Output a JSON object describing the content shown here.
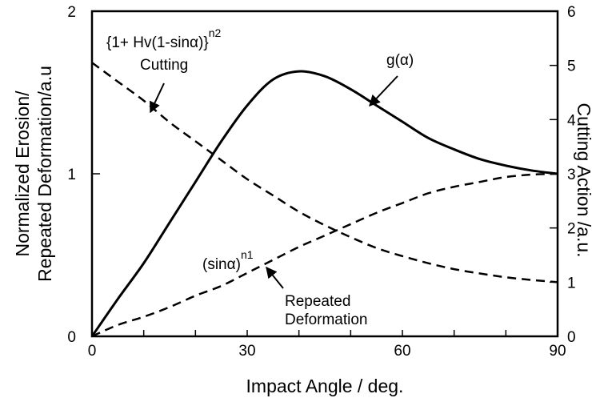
{
  "chart_data": {
    "type": "line",
    "xlabel": "Impact Angle / deg.",
    "ylabel_left_line1": "Normalized Erosion/",
    "ylabel_left_line2": "Repeated Deformation/a.u",
    "ylabel_right": "Cutting Action /a.u.",
    "xlim": [
      0,
      90
    ],
    "ylim_left": [
      0,
      2
    ],
    "ylim_right": [
      0,
      6
    ],
    "x_ticks": [
      "0",
      "30",
      "60",
      "90"
    ],
    "y_left_ticks": [
      "0",
      "1",
      "2"
    ],
    "y_right_ticks": [
      "0",
      "1",
      "2",
      "3",
      "4",
      "5",
      "6"
    ],
    "grid": false,
    "series": [
      {
        "name": "g(α)",
        "style": "solid",
        "axis": "left",
        "x": [
          0,
          5,
          10,
          15,
          20,
          25,
          30,
          35,
          40,
          45,
          50,
          55,
          60,
          65,
          70,
          75,
          80,
          85,
          90
        ],
        "y": [
          0,
          0.23,
          0.45,
          0.7,
          0.95,
          1.2,
          1.42,
          1.58,
          1.63,
          1.6,
          1.52,
          1.42,
          1.32,
          1.22,
          1.15,
          1.09,
          1.05,
          1.02,
          1.0
        ]
      },
      {
        "name": "{1+Hv(1-sinα)}^n2 Cutting",
        "style": "dashed",
        "axis": "right",
        "x": [
          0,
          5,
          10,
          15,
          20,
          25,
          30,
          35,
          40,
          45,
          50,
          55,
          60,
          65,
          70,
          75,
          80,
          85,
          90
        ],
        "y": [
          5.05,
          4.7,
          4.35,
          3.95,
          3.6,
          3.25,
          2.9,
          2.6,
          2.3,
          2.05,
          1.83,
          1.63,
          1.48,
          1.35,
          1.24,
          1.16,
          1.09,
          1.04,
          1.0
        ]
      },
      {
        "name": "(sinα)^n1 Repeated Deformation",
        "style": "dashed",
        "axis": "left",
        "x": [
          0,
          5,
          10,
          15,
          20,
          25,
          30,
          35,
          40,
          45,
          50,
          55,
          60,
          65,
          70,
          75,
          80,
          85,
          90
        ],
        "y": [
          0,
          0.07,
          0.12,
          0.18,
          0.25,
          0.31,
          0.39,
          0.47,
          0.55,
          0.62,
          0.69,
          0.76,
          0.82,
          0.88,
          0.92,
          0.95,
          0.98,
          0.995,
          1.0
        ]
      }
    ],
    "annotations": {
      "g": {
        "text_main": "g(",
        "text_alpha": "α",
        "text_close": ")"
      },
      "cutting_formula": {
        "part1": "{1+ Hv(1-sin",
        "alpha": "α",
        "part2": ")}",
        "exp": "n2"
      },
      "cutting_label": "Cutting",
      "deform_formula": {
        "part1": "(sin",
        "alpha": "α",
        "part2": ")",
        "exp": "n1"
      },
      "deform_label_1": "Repeated",
      "deform_label_2": "Deformation"
    }
  }
}
